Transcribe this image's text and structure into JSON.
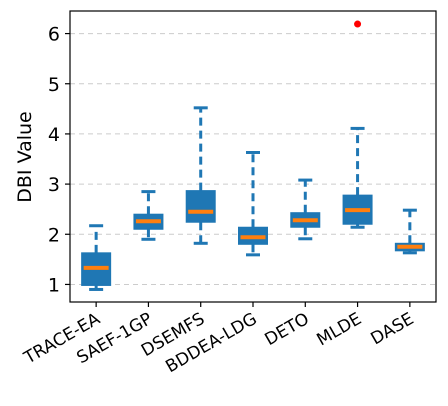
{
  "chart_data": {
    "type": "box",
    "title": "",
    "xlabel": "",
    "ylabel": "DBI Value",
    "ylim": [
      0.65,
      6.45
    ],
    "yticks": [
      1,
      2,
      3,
      4,
      5,
      6
    ],
    "grid": "horizontal dashed",
    "categories": [
      "TRACE-EA",
      "SAEF-1GP",
      "DSEMFS",
      "BDDEA-LDG",
      "DETO",
      "MLDE",
      "DASE"
    ],
    "boxes": [
      {
        "category": "TRACE-EA",
        "whisker_low": 0.9,
        "q1": 0.98,
        "median": 1.33,
        "q3": 1.63,
        "whisker_high": 2.17,
        "outliers": []
      },
      {
        "category": "SAEF-1GP",
        "whisker_low": 1.9,
        "q1": 2.1,
        "median": 2.26,
        "q3": 2.4,
        "whisker_high": 2.85,
        "outliers": []
      },
      {
        "category": "DSEMFS",
        "whisker_low": 1.82,
        "q1": 2.24,
        "median": 2.45,
        "q3": 2.87,
        "whisker_high": 4.52,
        "outliers": []
      },
      {
        "category": "BDDEA-LDG",
        "whisker_low": 1.59,
        "q1": 1.8,
        "median": 1.94,
        "q3": 2.14,
        "whisker_high": 3.63,
        "outliers": []
      },
      {
        "category": "DETO",
        "whisker_low": 1.91,
        "q1": 2.14,
        "median": 2.28,
        "q3": 2.43,
        "whisker_high": 3.08,
        "outliers": []
      },
      {
        "category": "MLDE",
        "whisker_low": 2.14,
        "q1": 2.2,
        "median": 2.48,
        "q3": 2.78,
        "whisker_high": 4.11,
        "outliers": [
          6.19
        ]
      },
      {
        "category": "DASE",
        "whisker_low": 1.63,
        "q1": 1.67,
        "median": 1.75,
        "q3": 1.82,
        "whisker_high": 2.48,
        "outliers": []
      }
    ],
    "colors": {
      "box": "#1f77b4",
      "median": "#ff7f0e",
      "outlier": "#ff0000",
      "grid": "#cccccc",
      "axis": "#000000"
    }
  }
}
